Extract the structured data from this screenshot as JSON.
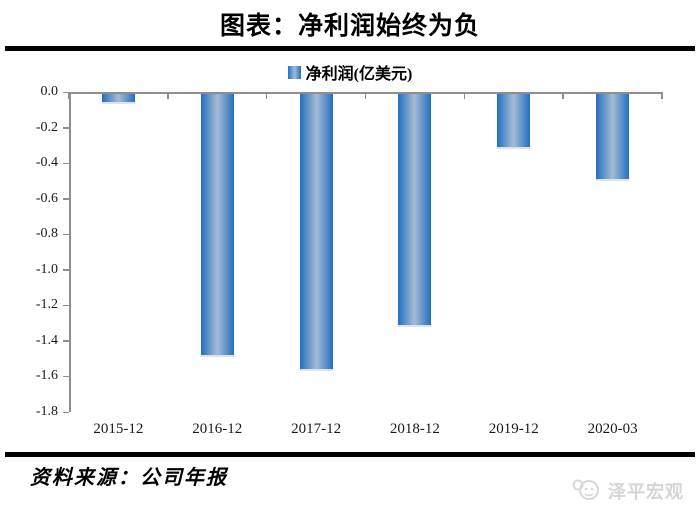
{
  "header": {
    "title": "图表：净利润始终为负"
  },
  "legend": {
    "label": "净利润(亿美元)"
  },
  "chart_data": {
    "type": "bar",
    "title": "图表：净利润始终为负",
    "series": [
      {
        "name": "净利润(亿美元)",
        "values": [
          -0.05,
          -1.47,
          -1.55,
          -1.3,
          -0.3,
          -0.48
        ]
      }
    ],
    "categories": [
      "2015-12",
      "2016-12",
      "2017-12",
      "2018-12",
      "2019-12",
      "2020-03"
    ],
    "xlabel": "",
    "ylabel": "",
    "ylim": [
      -1.8,
      0.0
    ],
    "ytick_labels": [
      "0.0",
      "-0.2",
      "-0.4",
      "-0.6",
      "-0.8",
      "-1.0",
      "-1.2",
      "-1.4",
      "-1.6",
      "-1.8"
    ],
    "grid": false,
    "legend_position": "top-center",
    "bar_edge_color": "#2170c1",
    "bar_center_color": "#a6bbd3",
    "bar_bottom_edge_color": "#dbe5f1",
    "axis_color": "#8e8e8e"
  },
  "footer": {
    "source": "资料来源：公司年报",
    "watermark": "泽平宏观"
  }
}
